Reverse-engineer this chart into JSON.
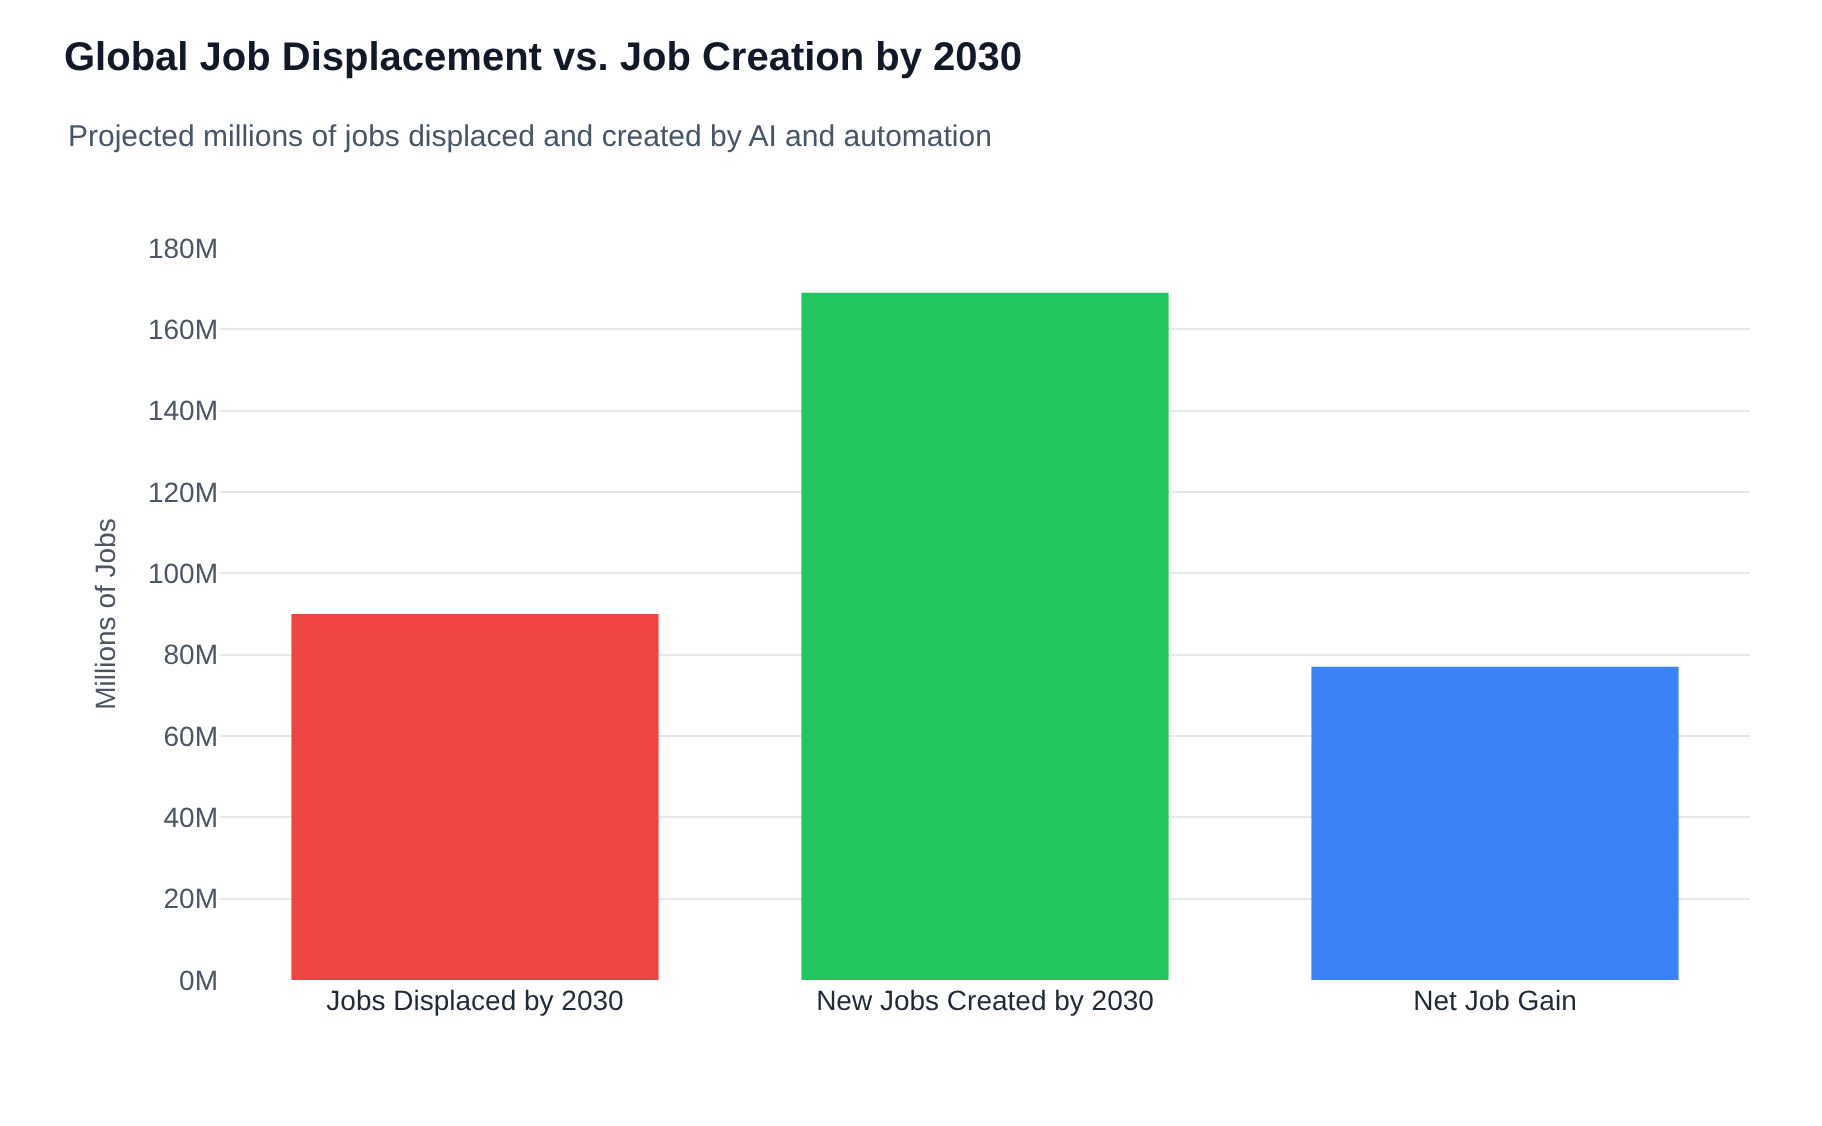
{
  "chart_data": {
    "type": "bar",
    "title": "Global Job Displacement vs. Job Creation by 2030",
    "subtitle": "Projected millions of jobs displaced and created by AI and automation",
    "ylabel": "Millions of Jobs",
    "categories": [
      "Jobs Displaced by 2030",
      "New Jobs Created by 2030",
      "Net Job Gain"
    ],
    "values": [
      90,
      169,
      77
    ],
    "colors": [
      "#ef4444",
      "#22c55e",
      "#3b82f6"
    ],
    "ylim": [
      0,
      180
    ],
    "yticks": [
      {
        "value": 0,
        "label": "0M"
      },
      {
        "value": 20,
        "label": "20M"
      },
      {
        "value": 40,
        "label": "40M"
      },
      {
        "value": 60,
        "label": "60M"
      },
      {
        "value": 80,
        "label": "80M"
      },
      {
        "value": 100,
        "label": "100M"
      },
      {
        "value": 120,
        "label": "120M"
      },
      {
        "value": 140,
        "label": "140M"
      },
      {
        "value": 160,
        "label": "160M"
      },
      {
        "value": 180,
        "label": "180M"
      }
    ],
    "grid": "y"
  }
}
